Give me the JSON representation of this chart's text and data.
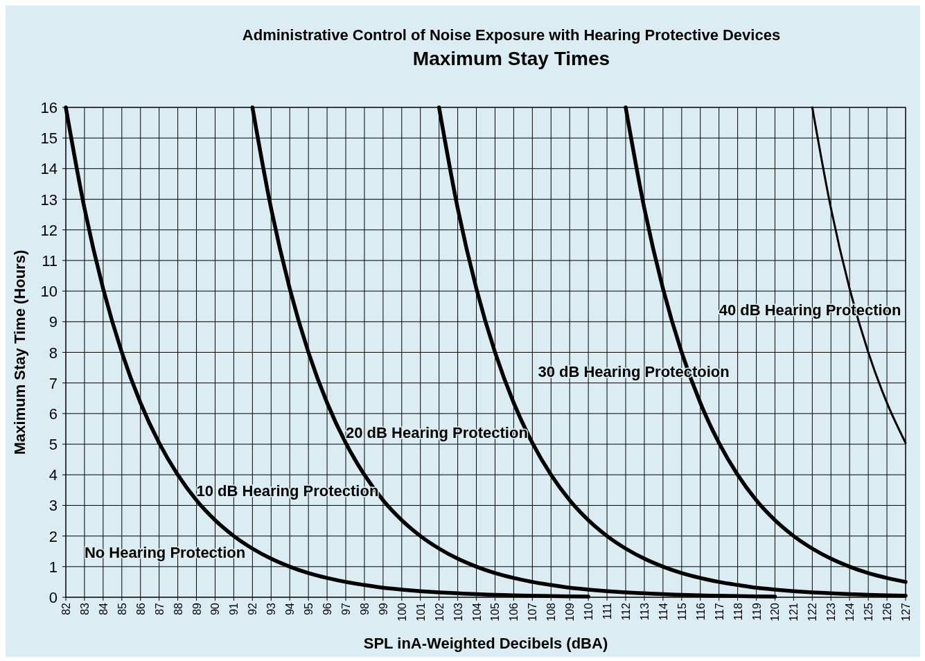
{
  "chart_data": {
    "type": "line",
    "title": "Administrative Control of Noise Exposure with Hearing Protective Devices",
    "subtitle": "Maximum Stay Times",
    "xlabel": "SPL inA-Weighted Decibels (dBA)",
    "ylabel": "Maximum Stay Time (Hours)",
    "xlim": [
      82,
      127
    ],
    "xticks": [
      82,
      83,
      84,
      85,
      86,
      87,
      88,
      89,
      90,
      91,
      92,
      93,
      94,
      95,
      96,
      97,
      98,
      99,
      100,
      101,
      102,
      103,
      104,
      105,
      106,
      107,
      108,
      109,
      110,
      111,
      112,
      113,
      114,
      115,
      116,
      117,
      118,
      119,
      120,
      121,
      122,
      123,
      124,
      125,
      126,
      127
    ],
    "ylim": [
      0,
      16
    ],
    "yticks": [
      0,
      1,
      2,
      3,
      4,
      5,
      6,
      7,
      8,
      9,
      10,
      11,
      12,
      13,
      14,
      15,
      16
    ],
    "grid": true,
    "marker": "none",
    "line_style": "solid",
    "series": [
      {
        "name": "No Hearing Protection",
        "color": "#000000",
        "x": [
          82,
          83,
          84,
          85,
          86,
          87,
          88,
          89,
          90,
          91,
          92,
          93,
          94,
          95,
          96,
          97,
          98,
          99,
          100,
          101,
          102,
          103,
          104,
          105,
          106,
          107,
          108,
          109,
          110
        ],
        "values": [
          16,
          12.7,
          10.08,
          8,
          6.35,
          5.04,
          4,
          3.17,
          2.52,
          2,
          1.59,
          1.26,
          1,
          0.79,
          0.63,
          0.5,
          0.4,
          0.31,
          0.25,
          0.2,
          0.16,
          0.13,
          0.1,
          0.08,
          0.06,
          0.05,
          0.04,
          0.03,
          0.02
        ]
      },
      {
        "name": "10 dB Hearing Protection",
        "color": "#000000",
        "x": [
          92,
          93,
          94,
          95,
          96,
          97,
          98,
          99,
          100,
          101,
          102,
          103,
          104,
          105,
          106,
          107,
          108,
          109,
          110,
          111,
          112,
          113,
          114,
          115,
          116,
          117,
          118,
          119,
          120
        ],
        "values": [
          16,
          12.7,
          10.08,
          8,
          6.35,
          5.04,
          4,
          3.17,
          2.52,
          2,
          1.59,
          1.26,
          1,
          0.79,
          0.63,
          0.5,
          0.4,
          0.31,
          0.25,
          0.2,
          0.16,
          0.13,
          0.1,
          0.08,
          0.06,
          0.05,
          0.04,
          0.03,
          0.02
        ]
      },
      {
        "name": "20 dB Hearing Protection",
        "color": "#000000",
        "x": [
          102,
          103,
          104,
          105,
          106,
          107,
          108,
          109,
          110,
          111,
          112,
          113,
          114,
          115,
          116,
          117,
          118,
          119,
          120,
          121,
          122,
          123,
          124,
          125,
          126,
          127
        ],
        "values": [
          16,
          12.7,
          10.08,
          8,
          6.35,
          5.04,
          4,
          3.17,
          2.52,
          2,
          1.59,
          1.26,
          1,
          0.79,
          0.63,
          0.5,
          0.4,
          0.31,
          0.25,
          0.2,
          0.16,
          0.13,
          0.1,
          0.08,
          0.06,
          0.05
        ]
      },
      {
        "name": "30 dB Hearing Protectoion",
        "color": "#000000",
        "x": [
          112,
          113,
          114,
          115,
          116,
          117,
          118,
          119,
          120,
          121,
          122,
          123,
          124,
          125,
          126,
          127
        ],
        "values": [
          16,
          12.7,
          10.08,
          8,
          6.35,
          5.04,
          4,
          3.17,
          2.52,
          2,
          1.59,
          1.26,
          1,
          0.79,
          0.63,
          0.5
        ]
      },
      {
        "name": "40 dB Hearing Protection",
        "color": "#000000",
        "x": [
          122,
          123,
          124,
          125,
          126,
          127
        ],
        "values": [
          16,
          12.7,
          10.08,
          8,
          6.35,
          5.04
        ]
      }
    ]
  }
}
